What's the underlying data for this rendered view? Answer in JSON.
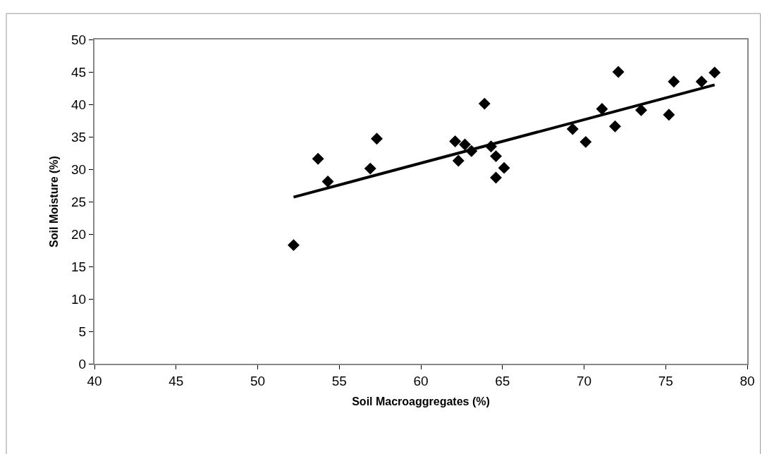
{
  "chart_data": {
    "type": "scatter",
    "xlabel": "Soil Macroaggregates (%)",
    "ylabel": "Soil Moisture (%)",
    "xlim": [
      40,
      80
    ],
    "xticks": [
      40,
      45,
      50,
      55,
      60,
      65,
      70,
      75,
      80
    ],
    "ylim": [
      0,
      50
    ],
    "yticks": [
      0,
      5,
      10,
      15,
      20,
      25,
      30,
      35,
      40,
      45,
      50
    ],
    "grid": false,
    "marker": "diamond",
    "series": [
      {
        "color": "#000000",
        "x": [
          52.2,
          53.7,
          54.3,
          56.9,
          57.3,
          62.1,
          62.3,
          62.7,
          63.1,
          63.9,
          64.3,
          64.6,
          64.6,
          65.1,
          69.3,
          70.1,
          71.1,
          71.9,
          72.1,
          73.5,
          75.2,
          75.5,
          77.2,
          78.0
        ],
        "values": [
          18.3,
          31.6,
          28.1,
          30.1,
          34.7,
          34.3,
          31.3,
          33.8,
          32.8,
          40.1,
          33.5,
          32.0,
          28.7,
          30.2,
          36.2,
          34.2,
          39.3,
          36.6,
          45.0,
          39.1,
          38.4,
          43.5,
          43.5,
          44.9
        ]
      },
      {
        "type": "line",
        "color": "#000000",
        "line_style": "solid",
        "marker": "none",
        "x": [
          52.2,
          78.0
        ],
        "values": [
          25.7,
          43.0
        ]
      }
    ]
  }
}
